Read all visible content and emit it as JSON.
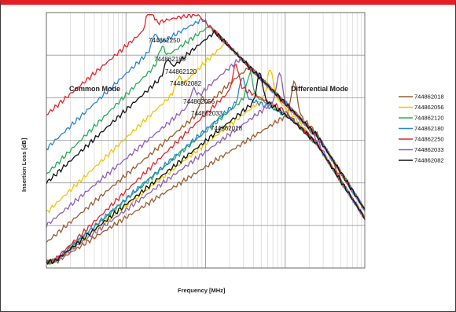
{
  "chart_data": {
    "type": "line",
    "title": "",
    "xlabel": "Frequency [MHz]",
    "ylabel": "Insertion Loss [dB]",
    "x_scale": "log",
    "xlim": [
      1,
      10000
    ],
    "ylim": [
      -60,
      0
    ],
    "grid": true,
    "legend_position": "right",
    "annotations": {
      "common_mode": "Common Mode",
      "differential_mode": "Differential Mode"
    },
    "series": [
      {
        "name": "744862018",
        "color": "#9b5a2e",
        "common": {
          "peak_f": 90,
          "peak_y": -23,
          "start_y": -54,
          "sharp": 3
        },
        "diff": {
          "peak_f": 1300,
          "peak_y": -23,
          "start_y": -60,
          "sharp": 7
        }
      },
      {
        "name": "744862056",
        "color": "#f5c400",
        "common": {
          "peak_f": 45,
          "peak_y": -18,
          "start_y": -47,
          "sharp": 3
        },
        "diff": {
          "peak_f": 650,
          "peak_y": -19,
          "start_y": -60,
          "sharp": 6
        }
      },
      {
        "name": "744862120",
        "color": "#27ad52",
        "common": {
          "peak_f": 28,
          "peak_y": -11,
          "start_y": -38,
          "sharp": 3
        },
        "diff": {
          "peak_f": 360,
          "peak_y": -19,
          "start_y": -60,
          "sharp": 5
        }
      },
      {
        "name": "744862180",
        "color": "#2a83d6",
        "common": {
          "peak_f": 23,
          "peak_y": -8,
          "start_y": -32,
          "sharp": 3
        },
        "diff": {
          "peak_f": 290,
          "peak_y": -20,
          "start_y": -60,
          "sharp": 5
        }
      },
      {
        "name": "744862250",
        "color": "#e0262b",
        "common": {
          "peak_f": 20,
          "peak_y": -3,
          "start_y": -24,
          "sharp": 6
        },
        "diff": {
          "peak_f": 240,
          "peak_y": -17,
          "start_y": -60,
          "sharp": 5
        }
      },
      {
        "name": "744862033",
        "color": "#8e5fb5",
        "common": {
          "peak_f": 70,
          "peak_y": -21,
          "start_y": -50,
          "sharp": 3
        },
        "diff": {
          "peak_f": 850,
          "peak_y": -20,
          "start_y": -60,
          "sharp": 6
        }
      },
      {
        "name": "744862082",
        "color": "#111111",
        "common": {
          "peak_f": 33,
          "peak_y": -14,
          "start_y": -40,
          "sharp": 3
        },
        "diff": {
          "peak_f": 480,
          "peak_y": -20,
          "start_y": -60,
          "sharp": 6
        }
      }
    ],
    "peak_labels": [
      "744862250",
      "744862180",
      "744862120",
      "744862082",
      "744862056",
      "744862033",
      "744862018"
    ]
  }
}
